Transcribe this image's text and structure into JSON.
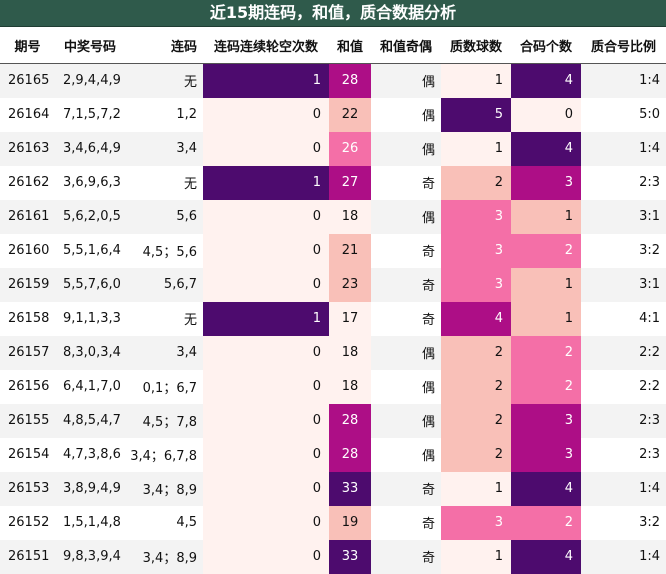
{
  "title": "近15期连码，和值，质合数据分析",
  "headers": [
    "期号",
    "中奖号码",
    "连码",
    "连码连续轮空次数",
    "和值",
    "和值奇偶",
    "质数球数",
    "合码个数",
    "质合号比例"
  ],
  "colors": {
    "deep_purple": "#4d0b6e",
    "magenta": "#ad0e86",
    "pink": "#f46fa7",
    "light_pink": "#f9c0b8",
    "pale": "#fff2ef"
  },
  "rows": [
    {
      "qihao": "26165",
      "haoma": "2,9,4,4,9",
      "lianma": "无",
      "lunkong": "1",
      "hezhi": "28",
      "jiou": "偶",
      "zhishu": "1",
      "hema": "4",
      "bili": "1:4"
    },
    {
      "qihao": "26164",
      "haoma": "7,1,5,7,2",
      "lianma": "1,2",
      "lunkong": "0",
      "hezhi": "22",
      "jiou": "偶",
      "zhishu": "5",
      "hema": "0",
      "bili": "5:0"
    },
    {
      "qihao": "26163",
      "haoma": "3,4,6,4,9",
      "lianma": "3,4",
      "lunkong": "0",
      "hezhi": "26",
      "jiou": "偶",
      "zhishu": "1",
      "hema": "4",
      "bili": "1:4"
    },
    {
      "qihao": "26162",
      "haoma": "3,6,9,6,3",
      "lianma": "无",
      "lunkong": "1",
      "hezhi": "27",
      "jiou": "奇",
      "zhishu": "2",
      "hema": "3",
      "bili": "2:3"
    },
    {
      "qihao": "26161",
      "haoma": "5,6,2,0,5",
      "lianma": "5,6",
      "lunkong": "0",
      "hezhi": "18",
      "jiou": "偶",
      "zhishu": "3",
      "hema": "1",
      "bili": "3:1"
    },
    {
      "qihao": "26160",
      "haoma": "5,5,1,6,4",
      "lianma": "4,5；5,6",
      "lunkong": "0",
      "hezhi": "21",
      "jiou": "奇",
      "zhishu": "3",
      "hema": "2",
      "bili": "3:2"
    },
    {
      "qihao": "26159",
      "haoma": "5,5,7,6,0",
      "lianma": "5,6,7",
      "lunkong": "0",
      "hezhi": "23",
      "jiou": "奇",
      "zhishu": "3",
      "hema": "1",
      "bili": "3:1"
    },
    {
      "qihao": "26158",
      "haoma": "9,1,1,3,3",
      "lianma": "无",
      "lunkong": "1",
      "hezhi": "17",
      "jiou": "奇",
      "zhishu": "4",
      "hema": "1",
      "bili": "4:1"
    },
    {
      "qihao": "26157",
      "haoma": "8,3,0,3,4",
      "lianma": "3,4",
      "lunkong": "0",
      "hezhi": "18",
      "jiou": "偶",
      "zhishu": "2",
      "hema": "2",
      "bili": "2:2"
    },
    {
      "qihao": "26156",
      "haoma": "6,4,1,7,0",
      "lianma": "0,1；6,7",
      "lunkong": "0",
      "hezhi": "18",
      "jiou": "偶",
      "zhishu": "2",
      "hema": "2",
      "bili": "2:2"
    },
    {
      "qihao": "26155",
      "haoma": "4,8,5,4,7",
      "lianma": "4,5；7,8",
      "lunkong": "0",
      "hezhi": "28",
      "jiou": "偶",
      "zhishu": "2",
      "hema": "3",
      "bili": "2:3"
    },
    {
      "qihao": "26154",
      "haoma": "4,7,3,8,6",
      "lianma": "3,4；6,7,8",
      "lunkong": "0",
      "hezhi": "28",
      "jiou": "偶",
      "zhishu": "2",
      "hema": "3",
      "bili": "2:3"
    },
    {
      "qihao": "26153",
      "haoma": "3,8,9,4,9",
      "lianma": "3,4；8,9",
      "lunkong": "0",
      "hezhi": "33",
      "jiou": "奇",
      "zhishu": "1",
      "hema": "4",
      "bili": "1:4"
    },
    {
      "qihao": "26152",
      "haoma": "1,5,1,4,8",
      "lianma": "4,5",
      "lunkong": "0",
      "hezhi": "19",
      "jiou": "奇",
      "zhishu": "3",
      "hema": "2",
      "bili": "3:2"
    },
    {
      "qihao": "26151",
      "haoma": "9,8,3,9,4",
      "lianma": "3,4；8,9",
      "lunkong": "0",
      "hezhi": "33",
      "jiou": "奇",
      "zhishu": "1",
      "hema": "4",
      "bili": "1:4"
    }
  ]
}
